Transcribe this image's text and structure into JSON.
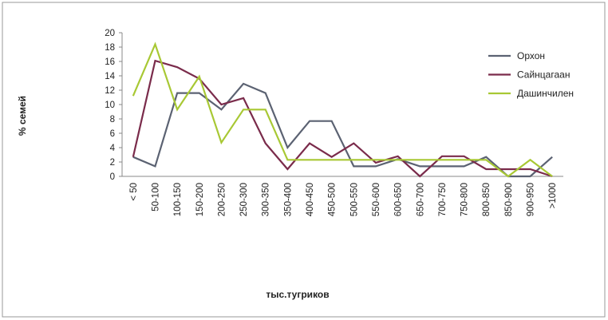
{
  "chart_data": {
    "type": "line",
    "y_label": "% семей",
    "x_label": "тыс.тугриков",
    "categories": [
      "< 50",
      "50-100",
      "100-150",
      "150-200",
      "200-250",
      "250-300",
      "300-350",
      "350-400",
      "400-450",
      "450-500",
      "500-550",
      "550-600",
      "600-650",
      "650-700",
      "700-750",
      "750-800",
      "800-850",
      "850-900",
      "900-950",
      ">1000"
    ],
    "series": [
      {
        "name": "Орхон",
        "color": "#5b6272",
        "values": [
          2.7,
          1.4,
          11.6,
          11.6,
          9.3,
          12.9,
          11.6,
          4.0,
          7.7,
          7.7,
          1.4,
          1.4,
          2.4,
          1.4,
          1.4,
          1.4,
          2.7,
          0,
          0,
          2.7
        ]
      },
      {
        "name": "Сайнцагаан",
        "color": "#7a2b4b",
        "values": [
          2.7,
          16.1,
          15.2,
          13.6,
          10.0,
          10.9,
          4.6,
          1.0,
          4.6,
          2.7,
          4.6,
          1.9,
          2.8,
          0,
          2.8,
          2.8,
          1.0,
          1.0,
          1.0,
          0
        ]
      },
      {
        "name": "Дашинчилен",
        "color": "#a8c834",
        "values": [
          11.2,
          18.4,
          9.3,
          13.9,
          4.7,
          9.3,
          9.3,
          2.3,
          2.3,
          2.3,
          2.3,
          2.3,
          2.3,
          2.3,
          2.3,
          2.3,
          2.3,
          0,
          2.3,
          0
        ]
      }
    ],
    "ylim": [
      0,
      20
    ],
    "yticks": [
      0,
      2,
      4,
      6,
      8,
      10,
      12,
      14,
      16,
      18,
      20
    ],
    "grid": false,
    "legend": "right"
  }
}
